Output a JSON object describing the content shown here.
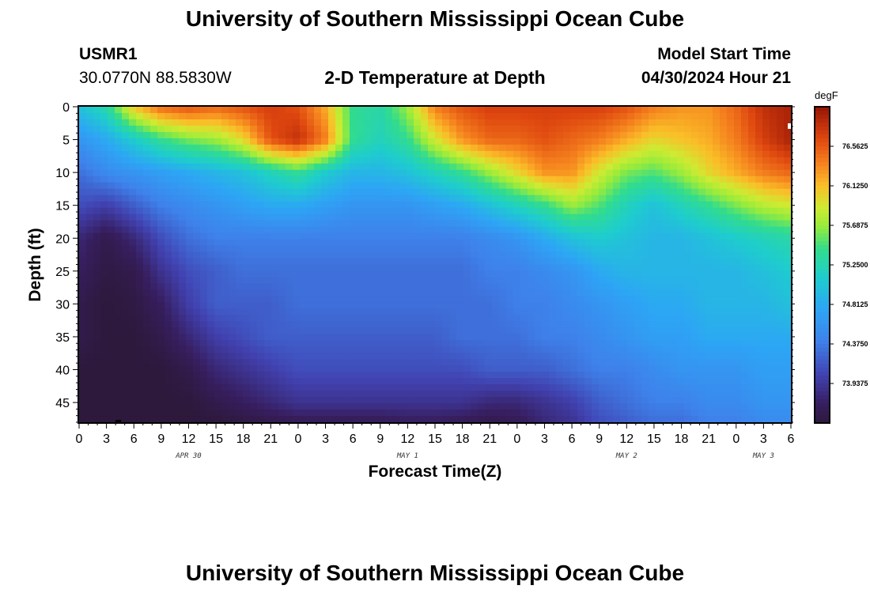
{
  "header": {
    "title": "University of Southern Mississippi Ocean Cube",
    "station_id": "USMR1",
    "coords": "30.0770N  88.5830W",
    "plot_title": "2-D Temperature at Depth",
    "model_start_label": "Model Start Time",
    "model_start_value": "04/30/2024 Hour 21"
  },
  "footer": {
    "title": "University of Southern Mississippi Ocean Cube"
  },
  "chart_data": {
    "type": "heatmap",
    "title": "2-D Temperature at Depth",
    "xlabel": "Forecast Time(Z)",
    "ylabel": "Depth (ft)",
    "units": "degF",
    "x_ticks": [
      "0",
      "3",
      "6",
      "9",
      "12",
      "15",
      "18",
      "21",
      "0",
      "3",
      "6",
      "9",
      "12",
      "15",
      "18",
      "21",
      "0",
      "3",
      "6",
      "9",
      "12",
      "15",
      "18",
      "21",
      "0",
      "3",
      "6"
    ],
    "x_range_hours_from_apr30_00z": [
      0,
      78
    ],
    "date_labels": [
      {
        "label": "APR 30",
        "hour": 12
      },
      {
        "label": "MAY 1",
        "hour": 36
      },
      {
        "label": "MAY 2",
        "hour": 60
      },
      {
        "label": "MAY 3",
        "hour": 75
      }
    ],
    "y_ticks": [
      "0",
      "5",
      "10",
      "15",
      "20",
      "25",
      "30",
      "35",
      "40",
      "45"
    ],
    "y_range_ft": [
      0,
      48
    ],
    "colorbar": {
      "unit_label": "degF",
      "range_degF": [
        73.5,
        77.0
      ],
      "labels": [
        "76.5625",
        "76.1250",
        "75.6875",
        "75.2500",
        "74.8125",
        "74.3750",
        "73.9375"
      ]
    },
    "depth_ft": [
      0,
      5,
      10,
      15,
      20,
      25,
      30,
      35,
      40,
      45,
      48
    ],
    "hour_nodes": [
      0,
      3,
      6,
      9,
      12,
      15,
      18,
      21,
      24,
      27,
      30,
      33,
      36,
      39,
      42,
      45,
      48,
      51,
      54,
      57,
      60,
      63,
      66,
      69,
      72,
      75,
      78
    ],
    "temperature_degF": [
      [
        75.0,
        75.3,
        76.1,
        76.5,
        76.6,
        76.5,
        76.6,
        76.7,
        76.6,
        76.2,
        75.4,
        75.3,
        75.7,
        76.4,
        76.6,
        76.7,
        76.7,
        76.7,
        76.7,
        76.7,
        76.6,
        76.4,
        76.3,
        76.3,
        76.5,
        76.8,
        76.9
      ],
      [
        74.6,
        74.8,
        75.1,
        75.4,
        75.6,
        75.7,
        76.0,
        76.6,
        76.8,
        76.4,
        75.4,
        75.2,
        75.4,
        75.9,
        76.3,
        76.5,
        76.5,
        76.6,
        76.5,
        76.4,
        76.2,
        76.0,
        76.1,
        76.2,
        76.4,
        76.7,
        76.9
      ],
      [
        74.3,
        74.5,
        74.6,
        74.7,
        74.8,
        74.9,
        75.0,
        75.2,
        75.4,
        75.1,
        74.9,
        74.9,
        75.0,
        75.2,
        75.4,
        75.7,
        76.0,
        76.3,
        76.3,
        75.9,
        75.6,
        75.5,
        75.7,
        76.0,
        76.2,
        76.4,
        76.5
      ],
      [
        74.1,
        74.0,
        74.2,
        74.4,
        74.5,
        74.6,
        74.7,
        74.8,
        74.8,
        74.7,
        74.6,
        74.6,
        74.6,
        74.7,
        74.8,
        75.0,
        75.2,
        75.4,
        75.7,
        75.5,
        75.2,
        75.0,
        75.2,
        75.4,
        75.6,
        75.8,
        75.9
      ],
      [
        73.8,
        73.6,
        73.8,
        74.1,
        74.3,
        74.4,
        74.4,
        74.4,
        74.4,
        74.4,
        74.4,
        74.4,
        74.4,
        74.4,
        74.4,
        74.5,
        74.6,
        74.8,
        75.0,
        75.1,
        75.0,
        74.9,
        74.9,
        75.0,
        75.1,
        75.2,
        75.3
      ],
      [
        73.7,
        73.55,
        73.6,
        73.9,
        74.1,
        74.2,
        74.3,
        74.3,
        74.3,
        74.3,
        74.3,
        74.3,
        74.3,
        74.3,
        74.3,
        74.4,
        74.4,
        74.5,
        74.6,
        74.8,
        74.9,
        74.9,
        74.9,
        74.9,
        74.9,
        75.0,
        75.1
      ],
      [
        73.6,
        73.5,
        73.55,
        73.7,
        74.0,
        74.2,
        74.2,
        74.2,
        74.3,
        74.3,
        74.3,
        74.3,
        74.3,
        74.3,
        74.3,
        74.3,
        74.4,
        74.4,
        74.5,
        74.6,
        74.7,
        74.8,
        74.8,
        74.9,
        74.9,
        74.9,
        75.0
      ],
      [
        73.6,
        73.5,
        73.5,
        73.6,
        73.8,
        74.0,
        74.1,
        74.2,
        74.2,
        74.2,
        74.2,
        74.2,
        74.2,
        74.2,
        74.3,
        74.3,
        74.3,
        74.4,
        74.4,
        74.5,
        74.6,
        74.7,
        74.7,
        74.8,
        74.8,
        74.8,
        74.8
      ],
      [
        73.5,
        73.5,
        73.5,
        73.5,
        73.6,
        73.8,
        73.9,
        74.0,
        74.1,
        74.1,
        74.1,
        74.1,
        74.1,
        74.1,
        74.1,
        74.2,
        74.2,
        74.2,
        74.3,
        74.4,
        74.4,
        74.5,
        74.6,
        74.6,
        74.6,
        74.7,
        74.7
      ],
      [
        73.5,
        73.5,
        73.5,
        73.5,
        73.5,
        73.6,
        73.7,
        73.8,
        73.9,
        73.9,
        73.9,
        73.9,
        73.9,
        73.9,
        73.9,
        73.8,
        73.8,
        73.9,
        74.0,
        74.2,
        74.3,
        74.4,
        74.4,
        74.5,
        74.5,
        74.6,
        74.6
      ],
      [
        73.5,
        73.5,
        73.5,
        73.5,
        73.5,
        73.5,
        73.55,
        73.6,
        73.65,
        73.65,
        73.65,
        73.65,
        73.7,
        73.7,
        73.65,
        73.6,
        73.65,
        73.8,
        73.9,
        74.1,
        74.2,
        74.3,
        74.3,
        74.4,
        74.4,
        74.5,
        74.5
      ]
    ]
  }
}
